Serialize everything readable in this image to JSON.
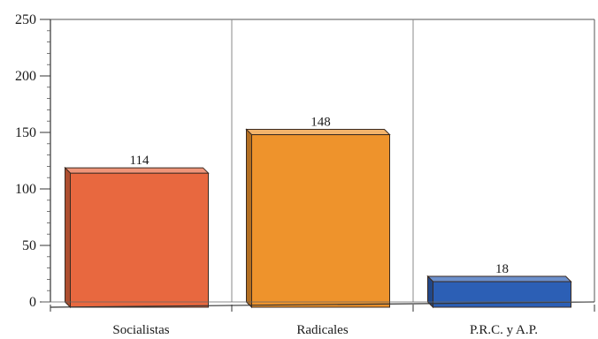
{
  "chart_data": {
    "type": "bar",
    "categories": [
      "Socialistas",
      "Radicales",
      "P.R.C. y A.P."
    ],
    "values": [
      114,
      148,
      18
    ],
    "data_labels": [
      "114",
      "148",
      "18"
    ],
    "ylim": [
      0,
      250
    ],
    "yticks": [
      0,
      50,
      100,
      150,
      200,
      250
    ],
    "ytick_labels": [
      "0",
      "50",
      "100",
      "150",
      "200",
      "250"
    ],
    "grid": "vertical separators between categories",
    "style": "3d",
    "colors": [
      "#E8683F",
      "#EE932C",
      "#2C5FB5"
    ],
    "title": "",
    "xlabel": "",
    "ylabel": ""
  }
}
